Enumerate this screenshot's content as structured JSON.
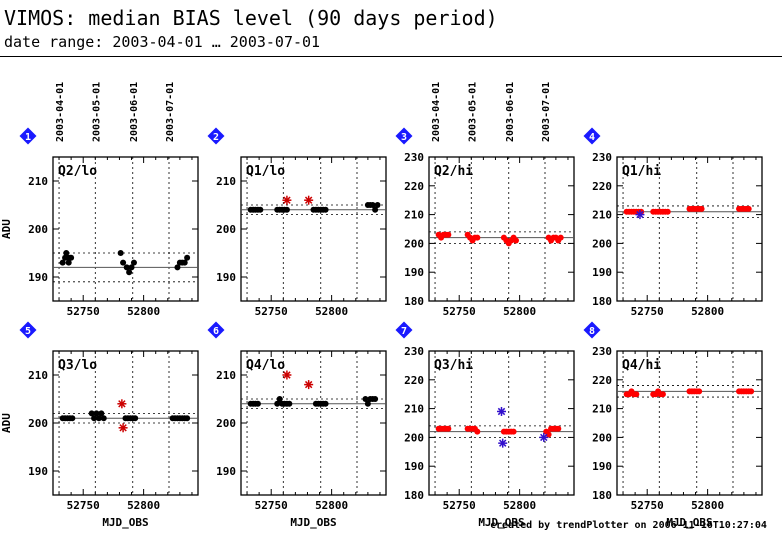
{
  "header": {
    "title": "VIMOS: median BIAS level (90 days period)",
    "subtitle": "date range: 2003-04-01 … 2003-07-01"
  },
  "footer": "created by trendPlotter on 2006-11-16T10:27:04",
  "colors": {
    "badge": "#1a1aff",
    "lo_points": "#000000",
    "hi_points": "#ff0000",
    "outlier_red": "#cc0000",
    "outlier_blue": "#3311cc"
  },
  "chart_data": {
    "type": "scatter",
    "date_labels": [
      "2003-04-01",
      "2003-05-01",
      "2003-06-01",
      "2003-07-01"
    ],
    "date_positions_mjd": [
      52730,
      52760,
      52791,
      52821
    ],
    "xlabel": "MJD_OBS",
    "ylabel": "ADU",
    "xlim": [
      52725,
      52845
    ],
    "xticks": [
      52750,
      52800
    ],
    "panels": [
      {
        "badge": "1",
        "label": "Q2/lo",
        "ylim": [
          185,
          215
        ],
        "yticks": [
          190,
          200,
          210
        ],
        "median": 192,
        "band": [
          189,
          195
        ],
        "color": "lo_points",
        "points": [
          [
            52733,
            193
          ],
          [
            52735,
            194
          ],
          [
            52736,
            195
          ],
          [
            52737,
            194
          ],
          [
            52738,
            193
          ],
          [
            52739,
            194
          ],
          [
            52740,
            194
          ],
          [
            52781,
            195
          ],
          [
            52783,
            193
          ],
          [
            52786,
            192
          ],
          [
            52788,
            191
          ],
          [
            52790,
            192
          ],
          [
            52792,
            193
          ],
          [
            52828,
            192
          ],
          [
            52830,
            193
          ],
          [
            52832,
            193
          ],
          [
            52834,
            193
          ],
          [
            52836,
            194
          ]
        ]
      },
      {
        "badge": "2",
        "label": "Q1/lo",
        "ylim": [
          185,
          215
        ],
        "yticks": [
          190,
          200,
          210
        ],
        "median": 204,
        "band": [
          203,
          205
        ],
        "color": "lo_points",
        "points": [
          [
            52733,
            204
          ],
          [
            52735,
            204
          ],
          [
            52737,
            204
          ],
          [
            52739,
            204
          ],
          [
            52741,
            204
          ],
          [
            52755,
            204
          ],
          [
            52757,
            204
          ],
          [
            52759,
            204
          ],
          [
            52761,
            204
          ],
          [
            52763,
            204
          ],
          [
            52785,
            204
          ],
          [
            52787,
            204
          ],
          [
            52789,
            204
          ],
          [
            52791,
            204
          ],
          [
            52793,
            204
          ],
          [
            52795,
            204
          ],
          [
            52830,
            205
          ],
          [
            52832,
            205
          ],
          [
            52834,
            205
          ],
          [
            52836,
            204
          ],
          [
            52838,
            205
          ]
        ],
        "outliers": [
          [
            52763,
            206,
            "outlier_red"
          ],
          [
            52781,
            206,
            "outlier_red"
          ]
        ]
      },
      {
        "badge": "3",
        "label": "Q2/hi",
        "ylim": [
          180,
          230
        ],
        "yticks": [
          180,
          190,
          200,
          210,
          220,
          230
        ],
        "median": 202,
        "band": [
          200,
          204
        ],
        "color": "hi_points",
        "points": [
          [
            52733,
            203
          ],
          [
            52735,
            202
          ],
          [
            52737,
            203
          ],
          [
            52739,
            203
          ],
          [
            52741,
            203
          ],
          [
            52757,
            203
          ],
          [
            52759,
            202
          ],
          [
            52761,
            201
          ],
          [
            52763,
            202
          ],
          [
            52765,
            202
          ],
          [
            52787,
            202
          ],
          [
            52789,
            201
          ],
          [
            52791,
            200
          ],
          [
            52793,
            201
          ],
          [
            52795,
            202
          ],
          [
            52797,
            201
          ],
          [
            52824,
            202
          ],
          [
            52826,
            201
          ],
          [
            52828,
            202
          ],
          [
            52830,
            202
          ],
          [
            52832,
            201
          ],
          [
            52834,
            202
          ]
        ]
      },
      {
        "badge": "4",
        "label": "Q1/hi",
        "ylim": [
          180,
          230
        ],
        "yticks": [
          180,
          190,
          200,
          210,
          220,
          230
        ],
        "median": 211,
        "band": [
          209,
          213
        ],
        "color": "hi_points",
        "points": [
          [
            52733,
            211
          ],
          [
            52735,
            211
          ],
          [
            52737,
            211
          ],
          [
            52739,
            211
          ],
          [
            52741,
            211
          ],
          [
            52743,
            211
          ],
          [
            52745,
            211
          ],
          [
            52755,
            211
          ],
          [
            52757,
            211
          ],
          [
            52759,
            211
          ],
          [
            52761,
            211
          ],
          [
            52763,
            211
          ],
          [
            52765,
            211
          ],
          [
            52767,
            211
          ],
          [
            52785,
            212
          ],
          [
            52787,
            212
          ],
          [
            52789,
            212
          ],
          [
            52791,
            212
          ],
          [
            52793,
            212
          ],
          [
            52795,
            212
          ],
          [
            52826,
            212
          ],
          [
            52828,
            212
          ],
          [
            52830,
            212
          ],
          [
            52832,
            212
          ],
          [
            52834,
            212
          ]
        ],
        "outliers": [
          [
            52744,
            210,
            "outlier_blue"
          ]
        ]
      },
      {
        "badge": "5",
        "label": "Q3/lo",
        "ylim": [
          185,
          215
        ],
        "yticks": [
          190,
          200,
          210
        ],
        "median": 201,
        "band": [
          200,
          202
        ],
        "color": "lo_points",
        "points": [
          [
            52733,
            201
          ],
          [
            52735,
            201
          ],
          [
            52737,
            201
          ],
          [
            52739,
            201
          ],
          [
            52741,
            201
          ],
          [
            52757,
            202
          ],
          [
            52759,
            201
          ],
          [
            52761,
            202
          ],
          [
            52763,
            201
          ],
          [
            52765,
            202
          ],
          [
            52767,
            201
          ],
          [
            52785,
            201
          ],
          [
            52787,
            201
          ],
          [
            52789,
            201
          ],
          [
            52791,
            201
          ],
          [
            52793,
            201
          ],
          [
            52824,
            201
          ],
          [
            52826,
            201
          ],
          [
            52828,
            201
          ],
          [
            52830,
            201
          ],
          [
            52832,
            201
          ],
          [
            52834,
            201
          ],
          [
            52836,
            201
          ]
        ],
        "outliers": [
          [
            52782,
            204,
            "outlier_red"
          ],
          [
            52783,
            199,
            "outlier_red"
          ]
        ]
      },
      {
        "badge": "6",
        "label": "Q4/lo",
        "ylim": [
          185,
          215
        ],
        "yticks": [
          190,
          200,
          210
        ],
        "median": 204,
        "band": [
          203,
          205
        ],
        "color": "lo_points",
        "points": [
          [
            52733,
            204
          ],
          [
            52735,
            204
          ],
          [
            52737,
            204
          ],
          [
            52739,
            204
          ],
          [
            52755,
            204
          ],
          [
            52757,
            205
          ],
          [
            52759,
            204
          ],
          [
            52761,
            204
          ],
          [
            52763,
            204
          ],
          [
            52765,
            204
          ],
          [
            52787,
            204
          ],
          [
            52789,
            204
          ],
          [
            52791,
            204
          ],
          [
            52793,
            204
          ],
          [
            52795,
            204
          ],
          [
            52828,
            205
          ],
          [
            52830,
            204
          ],
          [
            52832,
            205
          ],
          [
            52834,
            205
          ],
          [
            52836,
            205
          ]
        ],
        "outliers": [
          [
            52763,
            210,
            "outlier_red"
          ],
          [
            52781,
            208,
            "outlier_red"
          ]
        ]
      },
      {
        "badge": "7",
        "label": "Q3/hi",
        "ylim": [
          180,
          230
        ],
        "yticks": [
          180,
          190,
          200,
          210,
          220,
          230
        ],
        "median": 202,
        "band": [
          200,
          204
        ],
        "color": "hi_points",
        "points": [
          [
            52733,
            203
          ],
          [
            52735,
            203
          ],
          [
            52737,
            203
          ],
          [
            52739,
            203
          ],
          [
            52741,
            203
          ],
          [
            52757,
            203
          ],
          [
            52759,
            203
          ],
          [
            52761,
            203
          ],
          [
            52763,
            203
          ],
          [
            52765,
            202
          ],
          [
            52787,
            202
          ],
          [
            52789,
            202
          ],
          [
            52791,
            202
          ],
          [
            52793,
            202
          ],
          [
            52795,
            202
          ],
          [
            52822,
            202
          ],
          [
            52824,
            201
          ],
          [
            52826,
            203
          ],
          [
            52828,
            203
          ],
          [
            52830,
            203
          ],
          [
            52832,
            203
          ]
        ],
        "outliers": [
          [
            52785,
            209,
            "outlier_blue"
          ],
          [
            52786,
            198,
            "outlier_blue"
          ],
          [
            52820,
            200,
            "outlier_blue"
          ]
        ]
      },
      {
        "badge": "8",
        "label": "Q4/hi",
        "ylim": [
          180,
          230
        ],
        "yticks": [
          180,
          190,
          200,
          210,
          220,
          230
        ],
        "median": 216,
        "band": [
          214,
          218
        ],
        "color": "hi_points",
        "points": [
          [
            52733,
            215
          ],
          [
            52735,
            215
          ],
          [
            52737,
            216
          ],
          [
            52739,
            215
          ],
          [
            52741,
            215
          ],
          [
            52755,
            215
          ],
          [
            52757,
            215
          ],
          [
            52759,
            216
          ],
          [
            52761,
            215
          ],
          [
            52763,
            215
          ],
          [
            52785,
            216
          ],
          [
            52787,
            216
          ],
          [
            52789,
            216
          ],
          [
            52791,
            216
          ],
          [
            52793,
            216
          ],
          [
            52826,
            216
          ],
          [
            52828,
            216
          ],
          [
            52830,
            216
          ],
          [
            52832,
            216
          ],
          [
            52834,
            216
          ],
          [
            52836,
            216
          ]
        ]
      }
    ]
  }
}
